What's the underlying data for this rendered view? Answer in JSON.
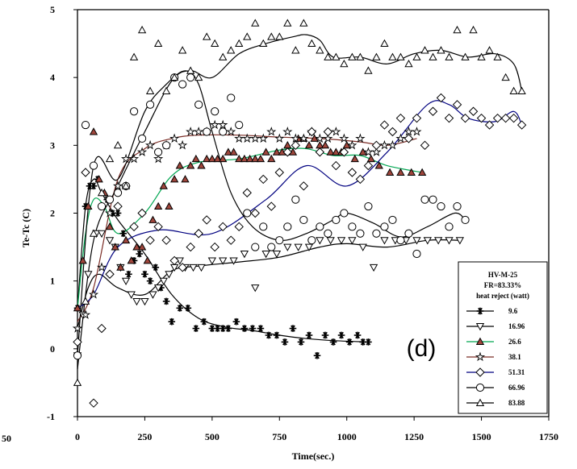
{
  "chart_data": {
    "type": "scatter",
    "panel_label": "(d)",
    "xlabel": "Time(sec.)",
    "ylabel": "Te-Tc (C)",
    "xlim": [
      -250,
      1750
    ],
    "ylim": [
      -1,
      5
    ],
    "x_ticks": [
      0,
      250,
      500,
      750,
      1000,
      1250,
      1500,
      1750
    ],
    "x_tick_labels": [
      "0",
      "250",
      "500",
      "750",
      "1000",
      "1250",
      "1500",
      "1750"
    ],
    "partial_left_tick_label": "50",
    "y_ticks": [
      -1,
      0,
      1,
      2,
      3,
      4,
      5
    ],
    "y_tick_labels": [
      "-1",
      "0",
      "1",
      "2",
      "3",
      "4",
      "5"
    ],
    "legend": {
      "title_lines": [
        "HV-M-25",
        "FR=83.33%",
        "heat reject (watt)"
      ],
      "position": "lower-right"
    },
    "series": [
      {
        "name": "9.6",
        "marker": "star6",
        "line_color": "#000000",
        "x": [
          0,
          30,
          45,
          60,
          75,
          90,
          110,
          130,
          150,
          170,
          190,
          210,
          230,
          250,
          270,
          290,
          310,
          330,
          350,
          380,
          410,
          440,
          470,
          500,
          520,
          540,
          560,
          590,
          620,
          650,
          680,
          710,
          740,
          770,
          800,
          830,
          860,
          890,
          920,
          950,
          980,
          1010,
          1040,
          1060,
          1080
        ],
        "y": [
          0.6,
          2.1,
          2.4,
          2.4,
          2.5,
          2.1,
          2.2,
          2.0,
          2.0,
          1.7,
          1.1,
          1.3,
          1.4,
          1.1,
          1.0,
          1.2,
          0.9,
          0.7,
          0.4,
          0.6,
          0.6,
          0.3,
          0.4,
          0.3,
          0.3,
          0.3,
          0.3,
          0.4,
          0.3,
          0.3,
          0.3,
          0.2,
          0.2,
          0.1,
          0.3,
          0.1,
          0.2,
          -0.1,
          0.2,
          0.1,
          0.2,
          0.1,
          0.2,
          0.1,
          0.1
        ],
        "fit_x": [
          0,
          30,
          60,
          90,
          150,
          250,
          350,
          450,
          550,
          650,
          750,
          850,
          950,
          1080
        ],
        "fit_y": [
          0.6,
          2.1,
          2.5,
          2.3,
          1.9,
          1.4,
          0.8,
          0.45,
          0.32,
          0.27,
          0.2,
          0.15,
          0.12,
          0.1
        ]
      },
      {
        "name": "16.96",
        "marker": "triangle-down",
        "line_color": "#000000",
        "x": [
          0,
          20,
          40,
          70,
          90,
          120,
          140,
          160,
          180,
          200,
          220,
          250,
          280,
          300,
          320,
          340,
          360,
          380,
          400,
          430,
          460,
          500,
          540,
          580,
          620,
          660,
          700,
          740,
          780,
          820,
          860,
          900,
          940,
          980,
          1020,
          1060,
          1100,
          1140,
          1180,
          1220,
          1260,
          1300,
          1340,
          1380,
          1420
        ],
        "y": [
          -0.1,
          0.5,
          1.1,
          1.7,
          1.7,
          1.6,
          1.5,
          1.2,
          1.0,
          0.8,
          0.7,
          0.7,
          0.8,
          0.9,
          1.0,
          1.1,
          1.2,
          1.3,
          1.2,
          1.2,
          1.2,
          1.3,
          1.3,
          1.3,
          1.4,
          0.9,
          1.4,
          1.4,
          1.5,
          1.5,
          1.5,
          1.6,
          1.6,
          1.6,
          1.6,
          1.5,
          1.2,
          1.6,
          1.6,
          1.6,
          1.6,
          1.6,
          1.6,
          1.6,
          1.6
        ],
        "fit_x": [
          0,
          40,
          80,
          150,
          250,
          350,
          450,
          600,
          750,
          900,
          1000,
          1150,
          1300,
          1420
        ],
        "fit_y": [
          0.3,
          0.9,
          1.1,
          0.9,
          0.8,
          1.15,
          1.22,
          1.28,
          1.35,
          1.5,
          1.55,
          1.5,
          1.6,
          1.6
        ]
      },
      {
        "name": "26.6",
        "marker": "triangle-up-filled",
        "line_color": "#00a651",
        "x": [
          0,
          20,
          40,
          60,
          80,
          100,
          120,
          140,
          160,
          180,
          200,
          220,
          240,
          260,
          280,
          300,
          320,
          340,
          360,
          380,
          400,
          420,
          440,
          460,
          480,
          500,
          520,
          540,
          560,
          580,
          600,
          620,
          640,
          660,
          680,
          700,
          720,
          740,
          760,
          780,
          800,
          820,
          840,
          860,
          880,
          900,
          920,
          940,
          960,
          980,
          1000,
          1030,
          1060,
          1090,
          1120,
          1160,
          1200,
          1240,
          1280
        ],
        "y": [
          0.6,
          1.3,
          2.1,
          3.2,
          2.5,
          2.3,
          1.8,
          1.5,
          1.2,
          1.6,
          1.3,
          1.5,
          1.5,
          1.3,
          1.9,
          2.1,
          2.4,
          2.1,
          2.5,
          2.7,
          2.5,
          2.7,
          2.8,
          2.7,
          2.8,
          2.8,
          2.8,
          2.8,
          2.9,
          2.9,
          2.8,
          2.8,
          2.8,
          2.8,
          2.8,
          2.9,
          2.8,
          2.9,
          2.9,
          3.0,
          2.9,
          3.1,
          3.1,
          3.0,
          3.1,
          3.0,
          3.0,
          2.9,
          2.9,
          2.9,
          3.0,
          2.8,
          2.9,
          2.8,
          2.7,
          2.6,
          2.6,
          2.6,
          2.6
        ],
        "fit_x": [
          0,
          30,
          60,
          100,
          150,
          250,
          350,
          450,
          600,
          750,
          850,
          950,
          1050,
          1150,
          1280
        ],
        "fit_y": [
          0.6,
          1.7,
          2.2,
          2.1,
          1.7,
          2.0,
          2.55,
          2.75,
          2.8,
          2.93,
          2.95,
          2.85,
          2.85,
          2.7,
          2.6
        ]
      },
      {
        "name": "38.1",
        "marker": "star5-open",
        "line_color": "#7b2d26",
        "x": [
          0,
          30,
          60,
          90,
          120,
          150,
          180,
          210,
          240,
          270,
          300,
          330,
          360,
          390,
          420,
          450,
          480,
          510,
          540,
          570,
          600,
          630,
          660,
          690,
          720,
          750,
          780,
          810,
          840,
          870,
          900,
          930,
          960,
          990,
          1020,
          1050,
          1080,
          1110,
          1140,
          1170,
          1200,
          1230,
          1260
        ],
        "y": [
          0.3,
          0.5,
          0.8,
          1.2,
          2.0,
          2.4,
          2.8,
          2.8,
          2.9,
          3.0,
          2.8,
          3.0,
          3.1,
          3.0,
          3.2,
          3.2,
          3.2,
          3.3,
          3.3,
          3.2,
          3.1,
          3.1,
          3.1,
          3.1,
          3.2,
          3.1,
          3.2,
          3.1,
          3.1,
          3.2,
          3.1,
          3.1,
          3.2,
          3.1,
          3.0,
          3.1,
          2.9,
          2.9,
          3.0,
          3.0,
          3.1,
          3.2,
          3.2
        ],
        "fit_x": [
          0,
          60,
          150,
          250,
          350,
          450,
          600,
          750,
          900,
          1050,
          1150,
          1260
        ],
        "fit_y": [
          0.4,
          0.9,
          2.5,
          2.95,
          3.1,
          3.15,
          3.15,
          3.12,
          3.1,
          3.05,
          3.0,
          3.1
        ]
      },
      {
        "name": "51.31",
        "marker": "diamond-open",
        "line_color": "#000080",
        "x": [
          0,
          30,
          60,
          90,
          120,
          150,
          180,
          210,
          240,
          270,
          300,
          330,
          360,
          390,
          420,
          450,
          480,
          510,
          540,
          570,
          600,
          630,
          660,
          690,
          720,
          750,
          780,
          810,
          840,
          870,
          900,
          930,
          960,
          990,
          1020,
          1050,
          1080,
          1110,
          1140,
          1170,
          1200,
          1230,
          1260,
          1290,
          1320,
          1350,
          1380,
          1410,
          1440,
          1470,
          1500,
          1530,
          1560,
          1590,
          1620,
          1650
        ],
        "y": [
          0.1,
          2.6,
          -0.8,
          0.3,
          1.1,
          2.1,
          2.4,
          1.8,
          2.0,
          1.6,
          1.8,
          1.6,
          1.3,
          1.2,
          1.5,
          1.7,
          1.9,
          1.5,
          1.8,
          1.6,
          1.8,
          2.3,
          2.0,
          2.5,
          2.1,
          2.6,
          2.9,
          3.0,
          2.4,
          3.2,
          2.9,
          3.2,
          2.7,
          2.9,
          2.6,
          2.5,
          2.7,
          3.0,
          3.3,
          3.2,
          3.4,
          3.1,
          3.4,
          3.0,
          3.5,
          3.7,
          3.4,
          3.6,
          3.4,
          3.5,
          3.4,
          3.3,
          3.4,
          3.4,
          3.4,
          3.3
        ],
        "fit_x": [
          0,
          60,
          150,
          300,
          500,
          700,
          850,
          1000,
          1150,
          1300,
          1380,
          1450,
          1550,
          1620,
          1650
        ],
        "fit_y": [
          0.6,
          0.8,
          1.5,
          1.75,
          1.7,
          2.2,
          2.7,
          2.4,
          2.9,
          3.6,
          3.6,
          3.4,
          3.35,
          3.5,
          3.3
        ]
      },
      {
        "name": "66.96",
        "marker": "circle-open",
        "line_color": "#000000",
        "x": [
          0,
          30,
          60,
          90,
          120,
          150,
          180,
          210,
          240,
          270,
          300,
          330,
          360,
          390,
          420,
          450,
          480,
          510,
          540,
          570,
          600,
          630,
          660,
          690,
          720,
          750,
          780,
          810,
          840,
          870,
          900,
          930,
          960,
          990,
          1020,
          1050,
          1080,
          1110,
          1140,
          1170,
          1200,
          1230,
          1260,
          1290,
          1320,
          1350,
          1380,
          1410,
          1440
        ],
        "y": [
          -0.1,
          3.3,
          2.7,
          2.1,
          2.2,
          2.3,
          2.4,
          3.5,
          3.1,
          3.6,
          2.9,
          3.0,
          4.0,
          3.9,
          4.0,
          3.6,
          3.2,
          3.5,
          3.2,
          3.7,
          3.3,
          2.0,
          1.5,
          1.8,
          1.5,
          1.6,
          1.8,
          2.2,
          1.9,
          1.6,
          1.8,
          1.7,
          1.9,
          2.0,
          1.8,
          1.7,
          2.1,
          1.7,
          1.8,
          1.9,
          1.6,
          1.7,
          1.4,
          2.2,
          2.2,
          2.1,
          1.8,
          2.1,
          1.9
        ],
        "fit_x": [
          0,
          60,
          150,
          250,
          330,
          400,
          450,
          500,
          570,
          650,
          750,
          850,
          950,
          1000,
          1100,
          1200,
          1300,
          1400,
          1440
        ],
        "fit_y": [
          -0.1,
          2.7,
          2.5,
          3.5,
          3.9,
          4.1,
          3.9,
          3.2,
          2.3,
          1.8,
          1.6,
          1.7,
          1.9,
          2.0,
          1.85,
          1.65,
          1.8,
          2.0,
          1.9
        ]
      },
      {
        "name": "83.88",
        "marker": "triangle-up-open",
        "line_color": "#000000",
        "x": [
          0,
          30,
          60,
          90,
          120,
          150,
          180,
          210,
          240,
          270,
          300,
          330,
          360,
          390,
          420,
          450,
          480,
          510,
          540,
          570,
          600,
          630,
          660,
          690,
          720,
          750,
          780,
          810,
          840,
          870,
          900,
          930,
          960,
          990,
          1020,
          1050,
          1080,
          1110,
          1140,
          1170,
          1200,
          1230,
          1260,
          1290,
          1320,
          1350,
          1380,
          1410,
          1440,
          1470,
          1500,
          1530,
          1560,
          1590,
          1620,
          1650
        ],
        "y": [
          -0.5,
          0.7,
          1.7,
          2.3,
          2.8,
          3.0,
          2.4,
          4.3,
          4.7,
          3.8,
          4.5,
          3.8,
          4.0,
          4.4,
          4.1,
          4.0,
          4.6,
          4.5,
          4.3,
          4.4,
          4.5,
          4.6,
          4.8,
          4.5,
          4.6,
          4.6,
          4.8,
          4.4,
          4.8,
          4.5,
          4.4,
          4.3,
          4.3,
          4.2,
          4.3,
          4.3,
          4.1,
          4.3,
          4.5,
          4.3,
          4.3,
          4.2,
          4.3,
          4.4,
          4.3,
          4.4,
          4.3,
          4.7,
          4.3,
          4.7,
          4.3,
          4.4,
          4.3,
          4.0,
          3.8,
          3.8
        ],
        "fit_x": [
          0,
          60,
          150,
          250,
          350,
          420,
          500,
          600,
          700,
          800,
          850,
          900,
          950,
          1050,
          1150,
          1250,
          1350,
          1450,
          1550,
          1620,
          1650
        ],
        "fit_y": [
          -0.3,
          1.6,
          2.4,
          3.2,
          3.95,
          4.1,
          4.0,
          4.35,
          4.5,
          4.6,
          4.63,
          4.55,
          4.3,
          4.3,
          4.2,
          4.35,
          4.4,
          4.3,
          4.35,
          4.2,
          3.8
        ]
      }
    ]
  }
}
